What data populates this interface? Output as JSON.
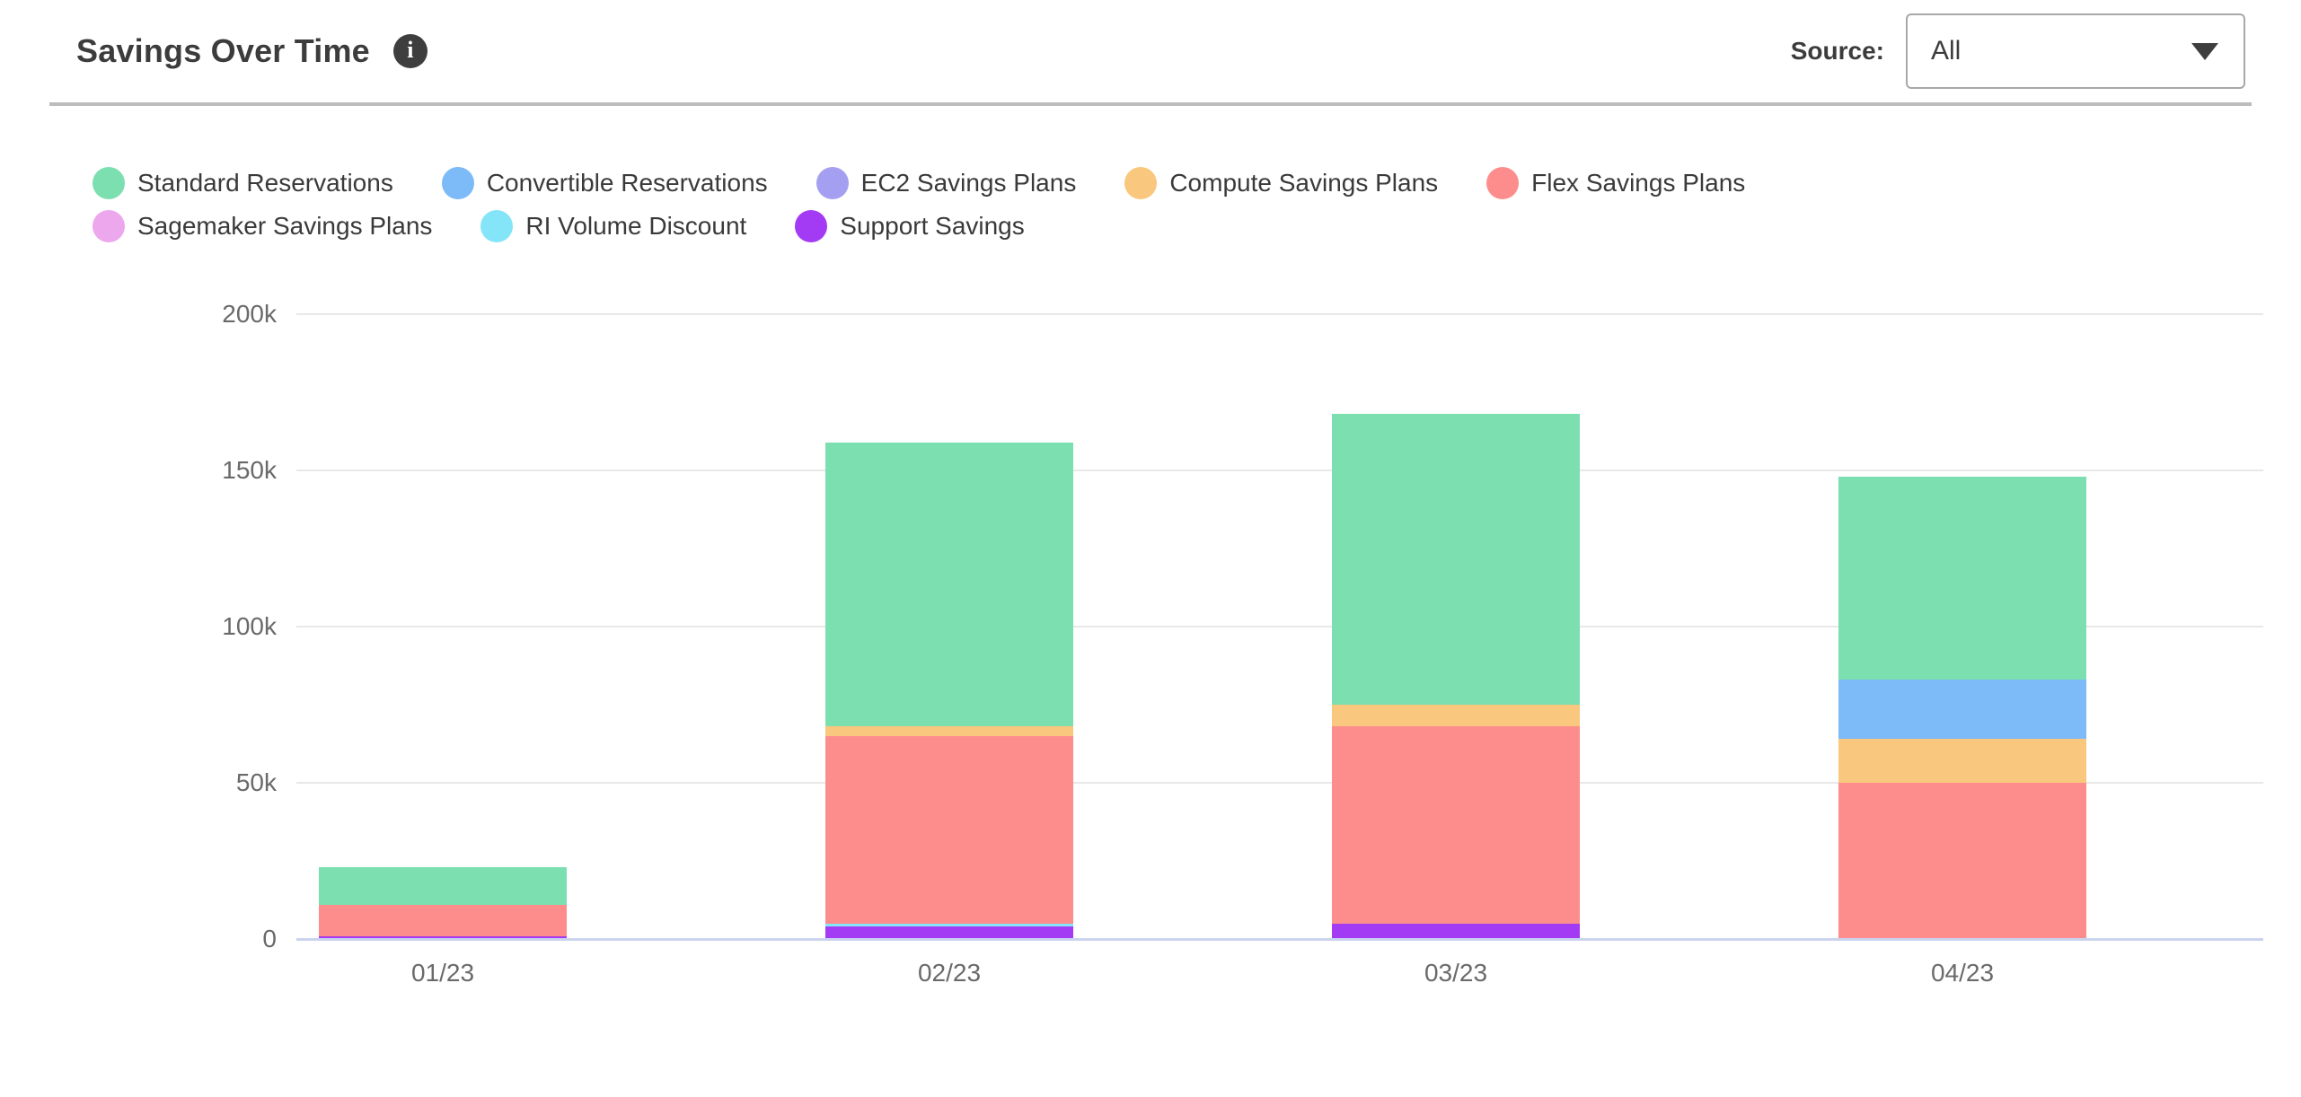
{
  "header": {
    "title": "Savings Over Time",
    "source_label": "Source:",
    "source_value": "All"
  },
  "legend": [
    {
      "label": "Standard Reservations",
      "color": "#7cdfaf"
    },
    {
      "label": "Convertible Reservations",
      "color": "#7dbaf8"
    },
    {
      "label": "EC2 Savings Plans",
      "color": "#a59ff2"
    },
    {
      "label": "Compute Savings Plans",
      "color": "#f9c77d"
    },
    {
      "label": "Flex Savings Plans",
      "color": "#fd8d8d"
    },
    {
      "label": "Sagemaker Savings Plans",
      "color": "#eda7ed"
    },
    {
      "label": "RI Volume Discount",
      "color": "#85e5f8"
    },
    {
      "label": "Support Savings",
      "color": "#a43bf4"
    }
  ],
  "chart_data": {
    "type": "bar",
    "stacked": true,
    "title": "Savings Over Time",
    "categories": [
      "01/23",
      "02/23",
      "03/23",
      "04/23"
    ],
    "series": [
      {
        "name": "Standard Reservations",
        "color": "#7cdfaf",
        "values": [
          12000,
          91000,
          93000,
          65000
        ]
      },
      {
        "name": "Convertible Reservations",
        "color": "#7dbaf8",
        "values": [
          0,
          0,
          0,
          19000
        ]
      },
      {
        "name": "EC2 Savings Plans",
        "color": "#a59ff2",
        "values": [
          0,
          0,
          0,
          0
        ]
      },
      {
        "name": "Compute Savings Plans",
        "color": "#f9c77d",
        "values": [
          0,
          3000,
          7000,
          14000
        ]
      },
      {
        "name": "Flex Savings Plans",
        "color": "#fd8d8d",
        "values": [
          10000,
          60000,
          63000,
          50000
        ]
      },
      {
        "name": "Sagemaker Savings Plans",
        "color": "#eda7ed",
        "values": [
          0,
          0,
          0,
          0
        ]
      },
      {
        "name": "RI Volume Discount",
        "color": "#85e5f8",
        "values": [
          0,
          1000,
          0,
          0
        ]
      },
      {
        "name": "Support Savings",
        "color": "#a43bf4",
        "values": [
          1000,
          4000,
          5000,
          0
        ]
      }
    ],
    "stack_order_bottom_to_top": [
      "Support Savings",
      "RI Volume Discount",
      "Sagemaker Savings Plans",
      "Flex Savings Plans",
      "Compute Savings Plans",
      "EC2 Savings Plans",
      "Convertible Reservations",
      "Standard Reservations"
    ],
    "y_ticks": [
      {
        "label": "200k",
        "value": 200000
      },
      {
        "label": "150k",
        "value": 150000
      },
      {
        "label": "100k",
        "value": 100000
      },
      {
        "label": "50k",
        "value": 50000
      },
      {
        "label": "0",
        "value": 0
      }
    ],
    "ylim": [
      0,
      200000
    ],
    "grid": true,
    "legend_position": "top"
  },
  "colors": {
    "grid_line": "#e8e8e8",
    "axis_base_line": "#cad4ef",
    "tick_text": "#6a6a6a",
    "title_text": "#3c3c3c",
    "divider": "#bcbcbc"
  }
}
